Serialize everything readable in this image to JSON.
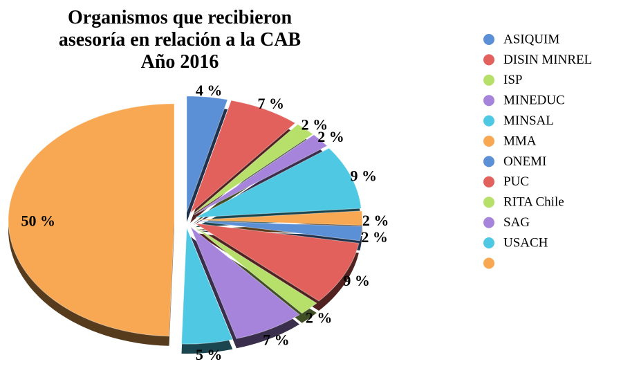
{
  "chart_data": {
    "type": "pie",
    "title": "Organismos que recibieron asesoría en relación a la CAB",
    "subtitle": "Año 2016",
    "categories": [
      "ASIQUIM",
      "DISIN MINREL",
      "ISP",
      "MINEDUC",
      "MINSAL",
      "MMA",
      "ONEMI",
      "PUC",
      "RITA Chile",
      "SAG",
      "USACH",
      null
    ],
    "values": [
      4,
      7,
      2,
      2,
      9,
      2,
      2,
      9,
      2,
      7,
      5,
      50
    ],
    "value_labels": [
      "4 %",
      "7 %",
      "2 %",
      "2 %",
      "9 %",
      "2 %",
      "2 %",
      "9 %",
      "2 %",
      "7 %",
      "5 %",
      "50 %"
    ],
    "colors": [
      "#5b8fd6",
      "#e2615c",
      "#b6e06a",
      "#a684dc",
      "#4fc9e3",
      "#f8a852",
      "#5b8fd6",
      "#e2615c",
      "#b6e06a",
      "#a684dc",
      "#4fc9e3",
      "#f8a852"
    ],
    "legend": "right"
  }
}
